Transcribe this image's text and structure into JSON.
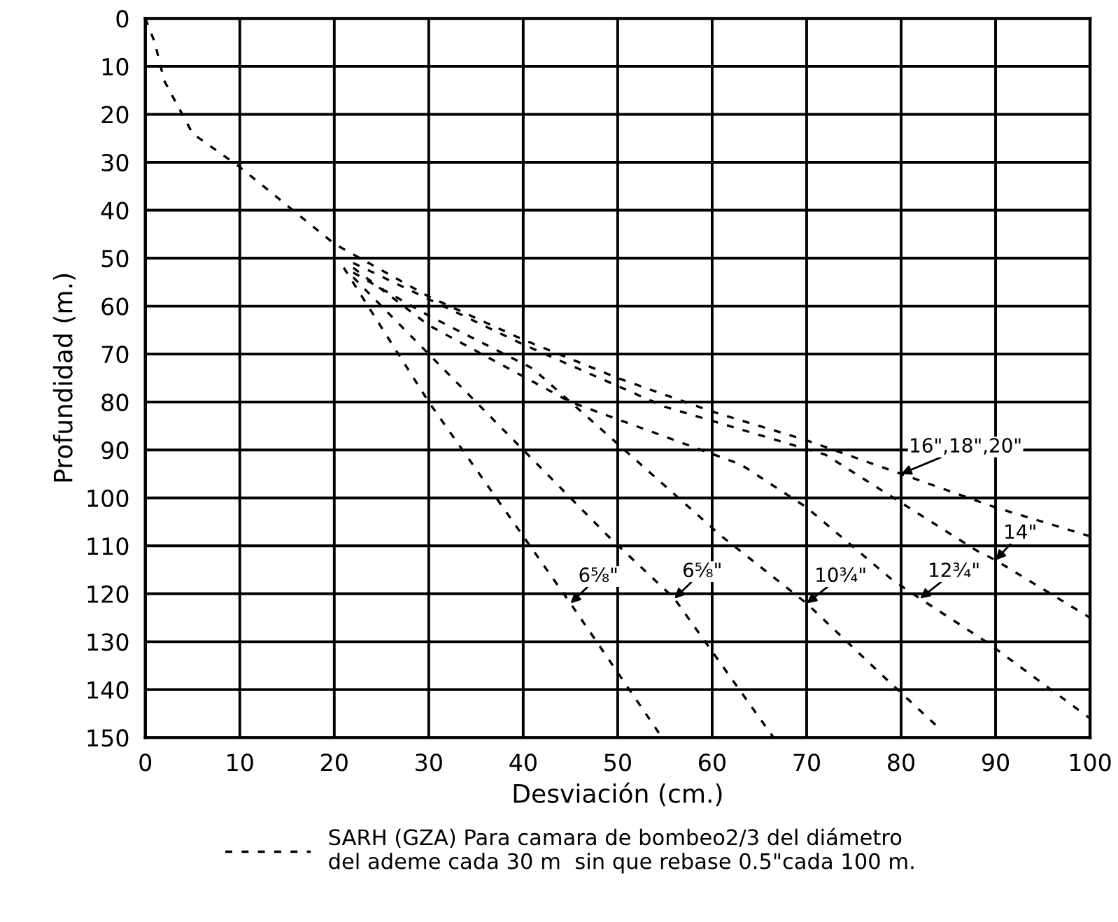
{
  "chart_data": {
    "type": "line",
    "xlabel": "Desviación (cm.)",
    "ylabel": "Profundidad (m.)",
    "xlim": [
      0,
      100
    ],
    "xticks": [
      0,
      10,
      20,
      30,
      40,
      50,
      60,
      70,
      80,
      90,
      100
    ],
    "ylim": [
      150,
      0
    ],
    "yticks": [
      0,
      10,
      20,
      30,
      40,
      50,
      60,
      70,
      80,
      90,
      100,
      110,
      120,
      130,
      140,
      150
    ],
    "grid": true,
    "legend": "bottom",
    "line_style": "dashed",
    "marker": "none",
    "series": [
      {
        "name": "SARH (GZA) Para camara de bombeo2/3 del diámetro\ndel ademe cada 30 m  sin que rebase 0.5\"cada 100 m.",
        "color": "#000000",
        "x": [
          0,
          1,
          2,
          5,
          10,
          15,
          20,
          30,
          40,
          50,
          60,
          70,
          80,
          90,
          100
        ],
        "values": [
          0,
          5,
          13,
          24,
          31,
          39,
          47,
          58,
          67,
          75,
          82,
          88,
          95,
          102,
          108
        ]
      },
      {
        "color": "#000000",
        "x": [
          22,
          40,
          55,
          72,
          80,
          88,
          90,
          100
        ],
        "values": [
          51,
          68,
          81,
          91,
          101,
          111,
          113,
          125
        ]
      },
      {
        "color": "#000000",
        "x": [
          22,
          30,
          45,
          63,
          70,
          79,
          82,
          89,
          100
        ],
        "values": [
          52,
          64,
          80,
          93,
          102,
          117,
          121,
          130,
          146
        ]
      },
      {
        "color": "#000000",
        "x": [
          22,
          30,
          41,
          49,
          61,
          70,
          78,
          84
        ],
        "values": [
          53,
          62,
          73,
          87,
          108,
          122,
          137,
          148
        ]
      },
      {
        "color": "#000000",
        "x": [
          22,
          30,
          41,
          49,
          56,
          66.5
        ],
        "values": [
          54,
          70,
          92,
          108,
          121,
          150
        ]
      },
      {
        "color": "#000000",
        "x": [
          21,
          30,
          40,
          45,
          54.7
        ],
        "values": [
          52,
          80,
          108,
          122,
          150
        ]
      }
    ],
    "annotations": [
      {
        "text": "16\",18\",20\"",
        "x": 80,
        "y": 95
      },
      {
        "text": "14\"",
        "x": 90,
        "y": 113
      },
      {
        "text": "12¾\"",
        "x": 82,
        "y": 121
      },
      {
        "text": "10¾\"",
        "x": 70,
        "y": 122
      },
      {
        "text": "6⅝\"",
        "x": 56,
        "y": 121
      },
      {
        "text": "6⅝\"",
        "x": 45,
        "y": 122
      }
    ]
  }
}
